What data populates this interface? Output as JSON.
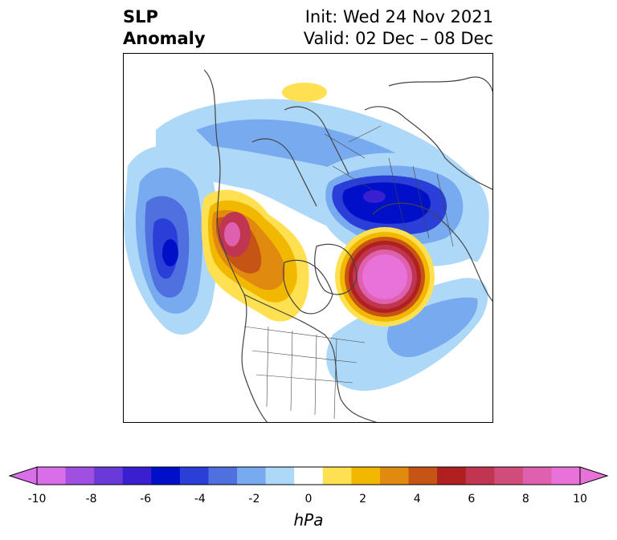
{
  "title": {
    "left_line1": "SLP",
    "left_line2": "Anomaly",
    "right_line1": "Init: Wed 24 Nov 2021",
    "right_line2": "Valid: 02 Dec – 08 Dec"
  },
  "colorbar": {
    "unit": "hPa",
    "ticks": [
      "-10",
      "-8",
      "-6",
      "-4",
      "-2",
      "0",
      "2",
      "4",
      "6",
      "8",
      "10"
    ],
    "levels": [
      -10,
      -9,
      -8,
      -7,
      -6,
      -5,
      -4,
      -3,
      -2,
      -1,
      1,
      2,
      3,
      4,
      5,
      6,
      7,
      8,
      9,
      10
    ],
    "colors": [
      "#d86ee8",
      "#a050e0",
      "#6a3ad8",
      "#3a1fd0",
      "#0010c8",
      "#2a3fd8",
      "#5070e0",
      "#78aaf0",
      "#aed8f8",
      "#ffffff",
      "#ffe050",
      "#f2b800",
      "#e08a10",
      "#c65414",
      "#b02020",
      "#c03650",
      "#d04c7a",
      "#e060b0",
      "#e872d8"
    ]
  }
}
